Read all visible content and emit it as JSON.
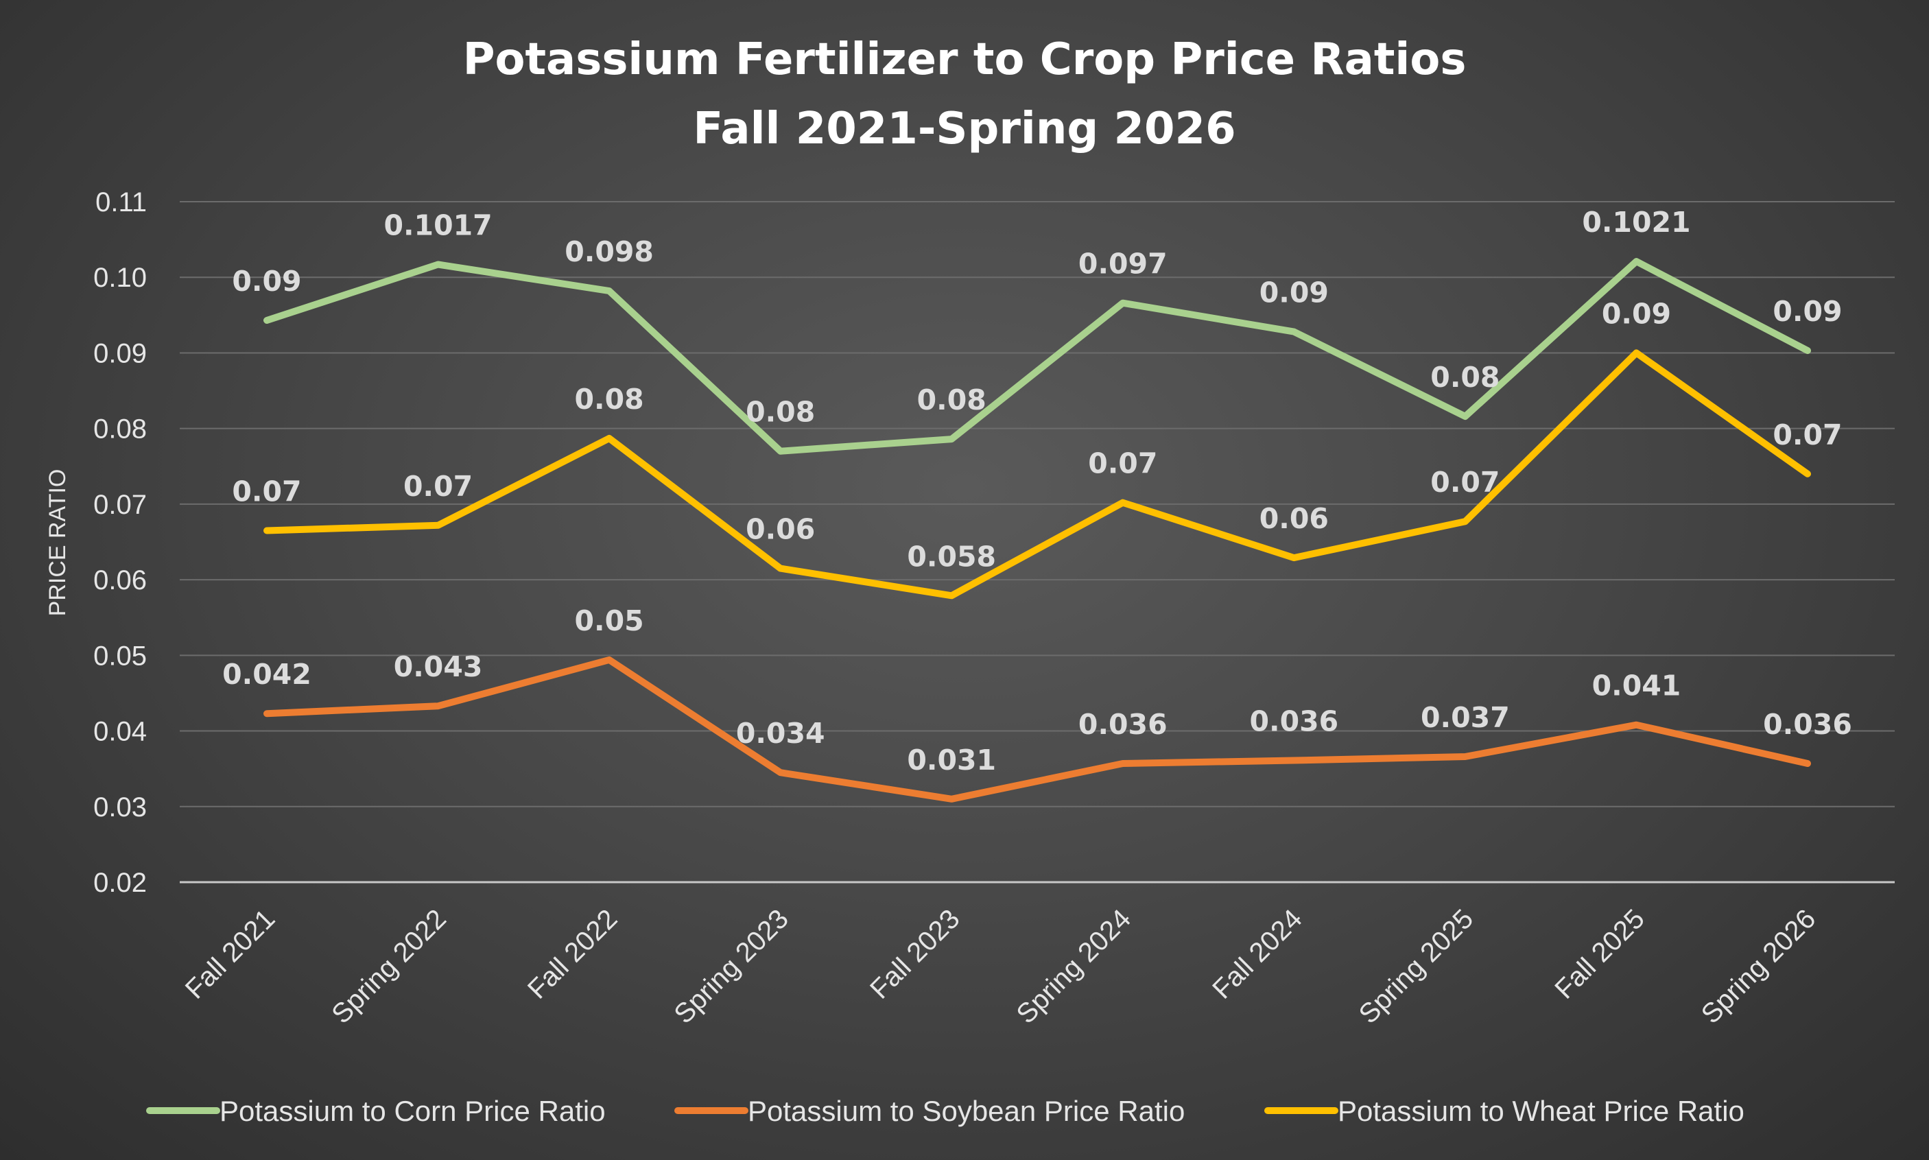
{
  "chart_data": {
    "type": "line",
    "title": "Potassium Fertilizer to Crop Price Ratios",
    "subtitle": "Fall 2021-Spring 2026",
    "xlabel": "",
    "ylabel": "PRICE RATIO",
    "ylim": [
      0.02,
      0.11
    ],
    "yticks": [
      "0.02",
      "0.03",
      "0.04",
      "0.05",
      "0.06",
      "0.07",
      "0.08",
      "0.09",
      "0.10",
      "0.11"
    ],
    "grid": true,
    "legend": "bottom",
    "categories": [
      "Fall 2021",
      "Spring 2022",
      "Fall 2022",
      "Spring 2023",
      "Fall 2023",
      "Spring 2024",
      "Fall 2024",
      "Spring 2025",
      "Fall 2025",
      "Spring 2026"
    ],
    "series": [
      {
        "name": "Potassium to Corn Price Ratio",
        "color": "#a9d18e",
        "values": [
          0.0943,
          0.1017,
          0.0982,
          0.077,
          0.0786,
          0.0966,
          0.0928,
          0.0816,
          0.1021,
          0.0903
        ],
        "labels": [
          "0.09",
          "0.1017",
          "0.098",
          "0.08",
          "0.08",
          "0.097",
          "0.09",
          "0.08",
          "0.1021",
          "0.09"
        ]
      },
      {
        "name": "Potassium to Soybean Price Ratio",
        "color": "#ed7d31",
        "values": [
          0.0423,
          0.0433,
          0.0494,
          0.0345,
          0.031,
          0.0357,
          0.0361,
          0.0366,
          0.0408,
          0.0357
        ],
        "labels": [
          "0.042",
          "0.043",
          "0.05",
          "0.034",
          "0.031",
          "0.036",
          "0.036",
          "0.037",
          "0.041",
          "0.036"
        ]
      },
      {
        "name": "Potassium to Wheat Price Ratio",
        "color": "#ffc000",
        "values": [
          0.0665,
          0.0672,
          0.0787,
          0.0615,
          0.0579,
          0.0702,
          0.0629,
          0.0677,
          0.09,
          0.074
        ],
        "labels": [
          "0.07",
          "0.07",
          "0.08",
          "0.06",
          "0.058",
          "0.07",
          "0.06",
          "0.07",
          "0.09",
          "0.07"
        ]
      }
    ]
  }
}
